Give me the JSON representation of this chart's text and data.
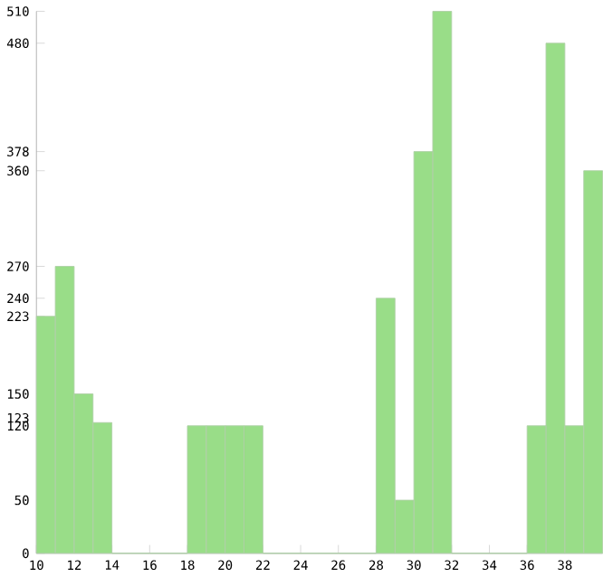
{
  "chart_data": {
    "type": "bar",
    "categories": [
      "10",
      null,
      "12",
      null,
      "14",
      null,
      "16",
      null,
      "18",
      null,
      "20",
      null,
      "22",
      null,
      "24",
      null,
      "26",
      null,
      "28",
      null,
      "30",
      null,
      "32",
      null,
      "34",
      null,
      "36",
      null,
      "38",
      null
    ],
    "values": [
      223,
      270,
      150,
      123,
      0,
      0,
      0,
      0,
      120,
      120,
      120,
      120,
      0,
      0,
      0,
      0,
      0,
      0,
      240,
      50,
      378,
      510,
      0,
      0,
      0,
      0,
      120,
      480,
      120,
      360
    ],
    "color": "#99dd88",
    "ylim": [
      0,
      510
    ],
    "yticks": [
      0,
      50,
      120,
      123,
      150,
      223,
      240,
      270,
      360,
      378,
      480,
      510
    ],
    "grid": false
  }
}
